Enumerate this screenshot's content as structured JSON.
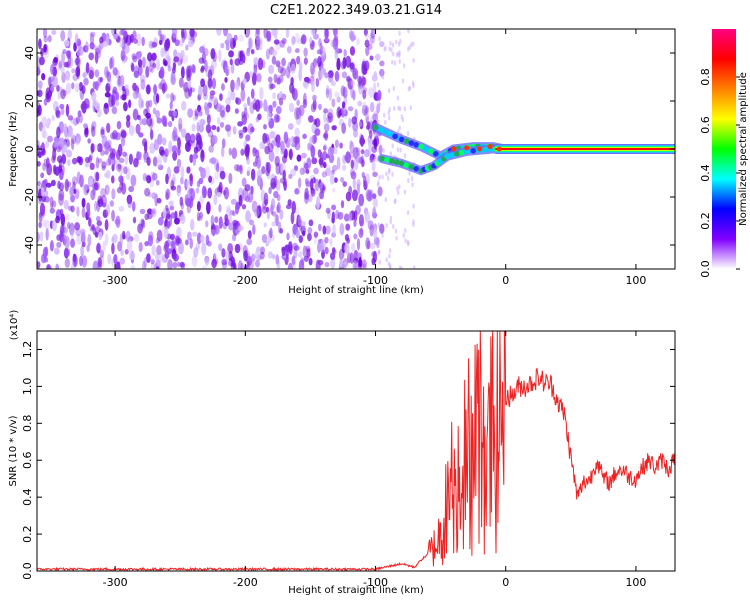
{
  "title": "C2E1.2022.349.03.21.G14",
  "chart_data": [
    {
      "type": "heatmap",
      "xlabel": "Height of straight line (km)",
      "ylabel": "Frequency (Hz)",
      "xlim": [
        -360,
        130
      ],
      "ylim": [
        -50,
        50
      ],
      "xticks": [
        -300,
        -200,
        -100,
        0,
        100
      ],
      "yticks": [
        -40,
        -20,
        0,
        20,
        40
      ],
      "grid": false,
      "colorbar": {
        "label": "Normalized spectral amplitude",
        "range": [
          0,
          1
        ],
        "ticks": [
          "0.0",
          "0.2",
          "0.4",
          "0.6",
          "0.8"
        ],
        "colormap": [
          "#ffffff",
          "#8000ff",
          "#0000ff",
          "#00ffff",
          "#00ff00",
          "#ffff00",
          "#ff8000",
          "#ff0000",
          "#ff0080"
        ]
      },
      "regions": [
        {
          "name": "noise",
          "x_range": [
            -360,
            -95
          ],
          "freq_range": [
            -50,
            50
          ],
          "amplitude_range": [
            0.0,
            0.15
          ]
        },
        {
          "name": "upper branch",
          "points": [
            [
              -100,
              9
            ],
            [
              -80,
              4
            ],
            [
              -65,
              1
            ],
            [
              -50,
              -3
            ],
            [
              -40,
              0
            ],
            [
              -25,
              1
            ],
            [
              -10,
              1
            ],
            [
              0,
              0
            ]
          ]
        },
        {
          "name": "lower branch",
          "points": [
            [
              -95,
              -4
            ],
            [
              -80,
              -6
            ],
            [
              -65,
              -9
            ],
            [
              -55,
              -7
            ],
            [
              -45,
              -3
            ],
            [
              -30,
              -1
            ],
            [
              -10,
              0
            ],
            [
              0,
              0
            ]
          ]
        },
        {
          "name": "steady tone",
          "x_range": [
            0,
            130
          ],
          "freq": 0,
          "amplitude": 1.0
        }
      ]
    },
    {
      "type": "line",
      "xlabel": "Height of straight line (km)",
      "ylabel": "SNR (10 * v/v)",
      "yscale_label": "(x10⁴)",
      "xlim": [
        -360,
        130
      ],
      "ylim": [
        0,
        1.3
      ],
      "xticks": [
        -300,
        -200,
        -100,
        0,
        100
      ],
      "yticks": [
        "0.0",
        "0.2",
        "0.4",
        "0.6",
        "0.8",
        "1.0",
        "1.2"
      ],
      "grid": false,
      "color": "#ee2222",
      "series": [
        {
          "x": [
            -360,
            -300,
            -200,
            -100,
            -80,
            -70,
            -65,
            -60,
            -55,
            -50,
            -45,
            -40,
            -35,
            -30,
            -25,
            -20,
            -15,
            -10,
            -5,
            0,
            5,
            10,
            15,
            20,
            25,
            30,
            35,
            40,
            45,
            50,
            55,
            60,
            65,
            70,
            75,
            80,
            85,
            90,
            95,
            100,
            105,
            110,
            115,
            120,
            125,
            130
          ],
          "y": [
            0.01,
            0.01,
            0.01,
            0.01,
            0.04,
            0.02,
            0.06,
            0.09,
            0.13,
            0.2,
            0.35,
            0.5,
            0.55,
            0.62,
            0.7,
            0.8,
            0.62,
            0.75,
            0.88,
            0.95,
            0.95,
            1.0,
            1.0,
            1.02,
            1.05,
            1.02,
            1.01,
            0.92,
            0.85,
            0.62,
            0.4,
            0.48,
            0.5,
            0.6,
            0.5,
            0.48,
            0.54,
            0.55,
            0.51,
            0.5,
            0.56,
            0.6,
            0.56,
            0.6,
            0.55,
            0.62
          ]
        }
      ]
    }
  ]
}
